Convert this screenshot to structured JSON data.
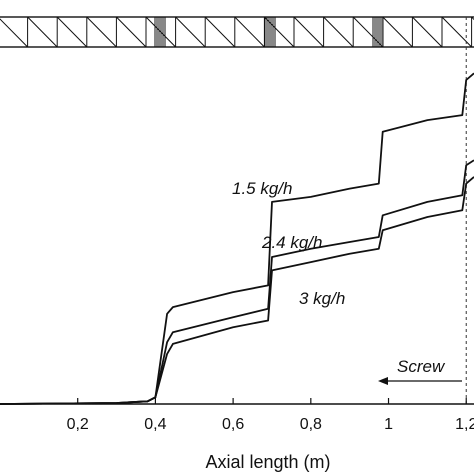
{
  "chart_data": {
    "type": "line",
    "xlabel": "Axial length (m)",
    "ylabel": "",
    "xlim": [
      0.0,
      1.22
    ],
    "x_ticks": [
      0.2,
      0.4,
      0.6,
      0.8,
      1.0,
      1.2
    ],
    "x_tick_labels": [
      "0,2",
      "0,4",
      "0,6",
      "0,8",
      "1",
      "1,2"
    ],
    "ylim": [
      0,
      100
    ],
    "grid": false,
    "series": [
      {
        "name": "1.5 kg/h",
        "x": [
          0.0,
          0.3,
          0.38,
          0.4,
          0.43,
          0.445,
          0.6,
          0.69,
          0.7,
          0.8,
          0.9,
          0.975,
          0.985,
          1.1,
          1.19,
          1.2,
          1.22
        ],
        "y": [
          0.0,
          0.3,
          0.8,
          2.0,
          27.0,
          29.0,
          33.5,
          35.5,
          60.5,
          62.0,
          64.5,
          66.0,
          81.5,
          85.0,
          86.5,
          97.0,
          99.0
        ]
      },
      {
        "name": "2.4 kg/h",
        "x": [
          0.0,
          0.3,
          0.38,
          0.4,
          0.43,
          0.445,
          0.6,
          0.69,
          0.7,
          0.8,
          0.9,
          0.975,
          0.985,
          1.1,
          1.19,
          1.2,
          1.22
        ],
        "y": [
          0.0,
          0.3,
          0.8,
          2.0,
          18.5,
          21.5,
          26.0,
          28.5,
          44.0,
          46.5,
          48.5,
          50.0,
          56.5,
          60.5,
          62.5,
          71.5,
          73.0
        ]
      },
      {
        "name": "3 kg/h",
        "x": [
          0.0,
          0.3,
          0.38,
          0.4,
          0.43,
          0.445,
          0.6,
          0.69,
          0.7,
          0.8,
          0.9,
          0.975,
          0.985,
          1.1,
          1.19,
          1.2,
          1.22
        ],
        "y": [
          0.0,
          0.3,
          0.8,
          2.0,
          15.0,
          18.0,
          23.0,
          25.0,
          40.0,
          42.5,
          45.0,
          46.5,
          52.0,
          56.0,
          58.0,
          66.0,
          68.0
        ]
      }
    ],
    "annotations": [
      {
        "text": "Screw",
        "arrow": "left"
      }
    ],
    "screw_marker_x": 1.2
  }
}
